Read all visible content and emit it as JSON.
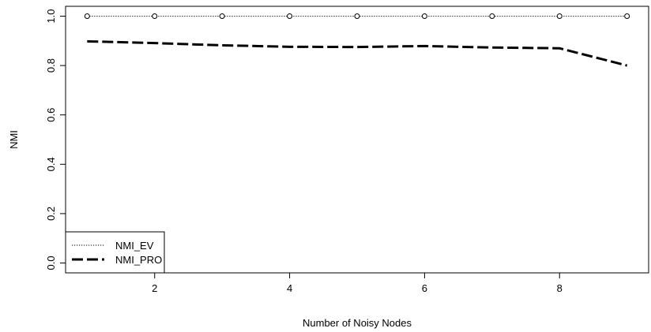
{
  "chart_data": {
    "type": "line",
    "title": "",
    "xlabel": "Number of Noisy Nodes",
    "ylabel": "NMI",
    "xlim": [
      0.68,
      9.32
    ],
    "ylim": [
      -0.04,
      1.04
    ],
    "x_ticks": [
      2,
      4,
      6,
      8
    ],
    "x_tick_labels": [
      "2",
      "4",
      "6",
      "8"
    ],
    "y_ticks": [
      0.0,
      0.2,
      0.4,
      0.6,
      0.8,
      1.0
    ],
    "y_tick_labels": [
      "0.0",
      "0.2",
      "0.4",
      "0.6",
      "0.8",
      "1.0"
    ],
    "grid": false,
    "legend_position": "bottom-left",
    "series": [
      {
        "name": "NMI_EV",
        "line_style": "dotted",
        "markers": "open-circle",
        "x": [
          1,
          2,
          3,
          4,
          5,
          6,
          7,
          8,
          9
        ],
        "values": [
          1.0,
          1.0,
          1.0,
          1.0,
          1.0,
          1.0,
          1.0,
          1.0,
          1.0
        ]
      },
      {
        "name": "NMI_PRO",
        "line_style": "long-dash",
        "markers": "none",
        "x": [
          1,
          2,
          3,
          4,
          5,
          6,
          7,
          8,
          9
        ],
        "values": [
          0.898,
          0.891,
          0.882,
          0.876,
          0.875,
          0.879,
          0.873,
          0.87,
          0.8
        ]
      }
    ]
  }
}
